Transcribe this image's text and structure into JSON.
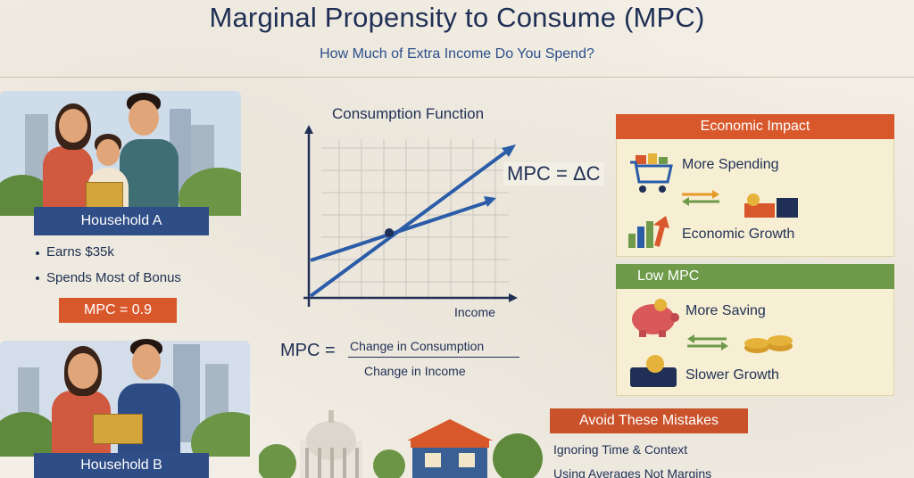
{
  "header": {
    "title": "Marginal Propensity to Consume (MPC)",
    "subtitle": "How Much of Extra Income Do You Spend?"
  },
  "household_a": {
    "banner": "Household A",
    "bullets": [
      "Earns $35k",
      "Spends Most of Bonus"
    ],
    "mpc": "MPC = 0.9"
  },
  "household_b": {
    "banner": "Household B"
  },
  "chart": {
    "title": "Consumption Function",
    "annotation": "MPC = ΔC",
    "xlabel": "Income"
  },
  "formula": {
    "lhs": "MPC =",
    "numerator": "Change in Consumption",
    "denominator": "Change in Income"
  },
  "economic_impact": {
    "header": "Economic Impact",
    "item1": "More Spending",
    "item2": "Economic Growth"
  },
  "low_mpc": {
    "header": "Low MPC",
    "item1": "More Saving",
    "item2": "Slower Growth"
  },
  "mistakes": {
    "header": "Avoid These Mistakes",
    "items": [
      "Ignoring Time & Context",
      "Using Averages Not Margins"
    ]
  },
  "colors": {
    "navy": "#1f2f55",
    "accent_orange": "#d9582b",
    "green": "#6f9a4a",
    "line_blue": "#2a5ca8"
  }
}
